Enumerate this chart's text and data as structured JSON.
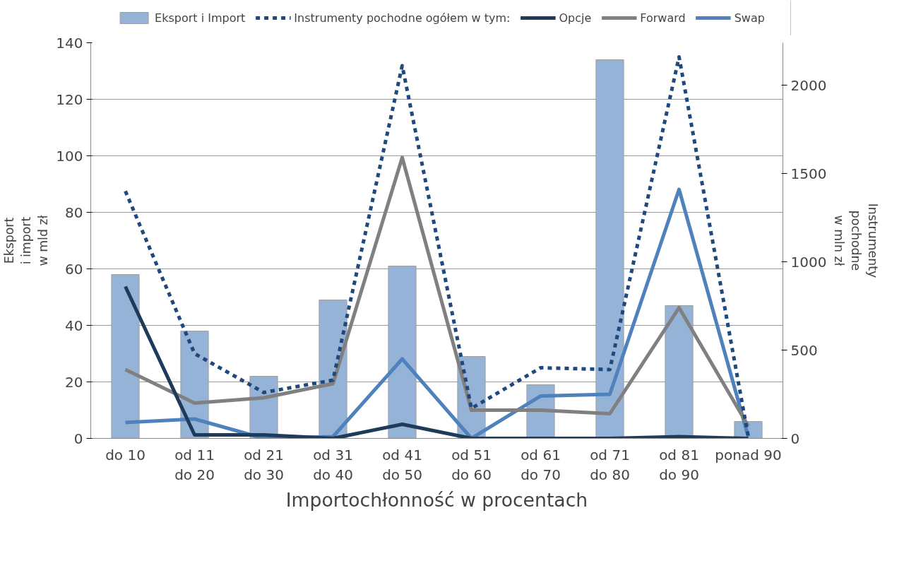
{
  "chart_data": {
    "type": "bar",
    "xlabel": "Importochłonność w procentach",
    "ylabel": "Eksport\ni import\nw mld zł",
    "y2label": "Instrumenty\npochodne\nw mln zł",
    "categories": [
      "do 10",
      "od 11\ndo 20",
      "od 21\ndo 30",
      "od 31\ndo 40",
      "od 41\ndo 50",
      "od 51\ndo 60",
      "od 61\ndo 70",
      "od 71\ndo 80",
      "od 81\ndo 90",
      "ponad 90"
    ],
    "series": [
      {
        "name": "Eksport i Import",
        "color": "#95b3d7",
        "values": [
          58,
          38,
          22,
          49,
          61,
          29,
          19,
          134,
          47,
          6
        ]
      },
      {
        "name": "Instrumenty pochodne ogółem w tym:",
        "type": "line",
        "axis": "y2",
        "line_style": "dashed",
        "color": "#1f497d",
        "values": [
          1400,
          480,
          260,
          330,
          2110,
          170,
          400,
          390,
          2160,
          10
        ]
      },
      {
        "name": "Opcje",
        "type": "line",
        "axis": "y2",
        "color": "#1f3b5c",
        "values": [
          860,
          20,
          20,
          0,
          80,
          0,
          0,
          0,
          10,
          0
        ]
      },
      {
        "name": "Forward",
        "type": "line",
        "axis": "y2",
        "color": "#808080",
        "values": [
          390,
          200,
          230,
          310,
          1590,
          160,
          160,
          140,
          740,
          70
        ]
      },
      {
        "name": "Swap",
        "type": "line",
        "axis": "y2",
        "color": "#4f81bd",
        "values": [
          90,
          110,
          0,
          10,
          450,
          0,
          240,
          250,
          1410,
          10
        ]
      }
    ],
    "ylim": [
      0,
      140
    ],
    "yticks": [
      0,
      20,
      40,
      60,
      80,
      100,
      120,
      140
    ],
    "y2lim": [
      0,
      2240
    ],
    "y2ticks": [
      0,
      500,
      1000,
      1500,
      2000
    ],
    "grid": "y",
    "legend": "top",
    "marker": "none"
  }
}
